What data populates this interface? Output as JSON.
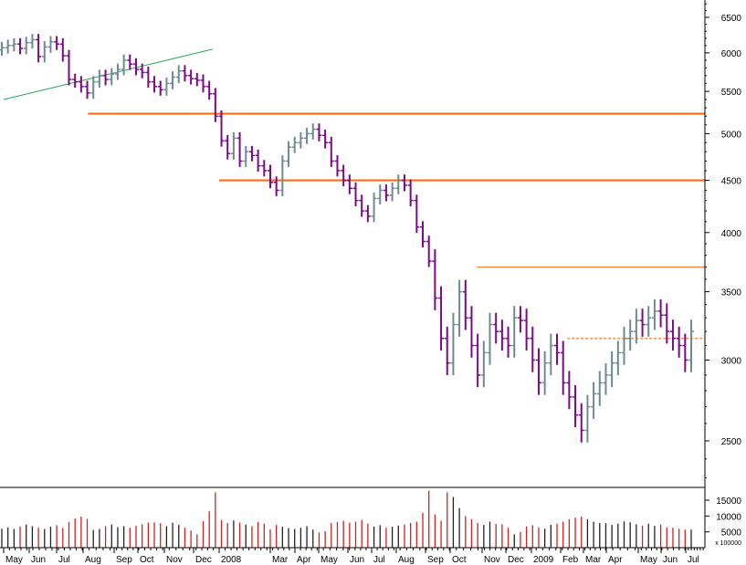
{
  "chart_data": [
    {
      "type": "ohlc-bar",
      "title": "",
      "scale": "log",
      "ylim": [
        2250,
        6800
      ],
      "y_ticks": [
        {
          "value": 2500,
          "label": "2500"
        },
        {
          "value": 3000,
          "label": "3000"
        },
        {
          "value": 3500,
          "label": "3500"
        },
        {
          "value": 4000,
          "label": "4000"
        },
        {
          "value": 4500,
          "label": "4500"
        },
        {
          "value": 5000,
          "label": "5000"
        },
        {
          "value": 5500,
          "label": "5500"
        },
        {
          "value": 6000,
          "label": "6000"
        },
        {
          "value": 6500,
          "label": "6500"
        }
      ],
      "x_range": [
        "2007-05-01",
        "2009-08-15"
      ],
      "x_ticks": [
        {
          "date": "2007-05-01",
          "label": "May"
        },
        {
          "date": "2007-06-01",
          "label": "Jun"
        },
        {
          "date": "2007-07-01",
          "label": "Jul"
        },
        {
          "date": "2007-08-01",
          "label": "Aug"
        },
        {
          "date": "2007-09-01",
          "label": "Sep"
        },
        {
          "date": "2007-10-01",
          "label": "Oct"
        },
        {
          "date": "2007-11-01",
          "label": "Nov"
        },
        {
          "date": "2007-12-01",
          "label": "Dec"
        },
        {
          "date": "2008-01-01",
          "label": "2008"
        },
        {
          "date": "2008-03-01",
          "label": "Mar"
        },
        {
          "date": "2008-04-01",
          "label": "Apr"
        },
        {
          "date": "2008-05-01",
          "label": "May"
        },
        {
          "date": "2008-06-01",
          "label": "Jun"
        },
        {
          "date": "2008-07-01",
          "label": "Jul"
        },
        {
          "date": "2008-08-01",
          "label": "Aug"
        },
        {
          "date": "2008-09-01",
          "label": "Sep"
        },
        {
          "date": "2008-10-01",
          "label": "Oct"
        },
        {
          "date": "2008-11-01",
          "label": "Nov"
        },
        {
          "date": "2008-12-01",
          "label": "Dec"
        },
        {
          "date": "2009-01-01",
          "label": "2009"
        },
        {
          "date": "2009-02-01",
          "label": "Feb"
        },
        {
          "date": "2009-03-01",
          "label": "Mar"
        },
        {
          "date": "2009-04-01",
          "label": "Apr"
        },
        {
          "date": "2009-05-01",
          "label": "May"
        },
        {
          "date": "2009-06-01",
          "label": "Jun"
        },
        {
          "date": "2009-07-01",
          "label": "Jul"
        }
      ],
      "colors": {
        "up": "#6f8a91",
        "down": "#7a0a88",
        "support": "#ff6a13",
        "trendline": "#2aa35a"
      },
      "weekly_close": [
        6070,
        6100,
        6120,
        6060,
        6140,
        6180,
        5950,
        6080,
        6150,
        6120,
        5960,
        5650,
        5620,
        5560,
        5480,
        5620,
        5700,
        5650,
        5720,
        5780,
        5900,
        5850,
        5780,
        5740,
        5620,
        5560,
        5520,
        5600,
        5680,
        5760,
        5700,
        5660,
        5640,
        5560,
        5470,
        5200,
        4920,
        4780,
        4950,
        4700,
        4800,
        4760,
        4650,
        4600,
        4480,
        4400,
        4700,
        4850,
        4900,
        4950,
        5000,
        5050,
        4980,
        4900,
        4700,
        4600,
        4500,
        4420,
        4300,
        4200,
        4150,
        4320,
        4400,
        4350,
        4420,
        4500,
        4450,
        4300,
        4050,
        3920,
        3750,
        3450,
        3150,
        2980,
        3250,
        3500,
        3300,
        3100,
        2900,
        3050,
        3250,
        3200,
        3150,
        3100,
        3300,
        3280,
        3150,
        3000,
        2850,
        2980,
        3100,
        3050,
        2850,
        2760,
        2650,
        2560,
        2700,
        2780,
        2850,
        2900,
        2980,
        3050,
        3150,
        3200,
        3280,
        3250,
        3300,
        3350,
        3320,
        3200,
        3150,
        3100,
        3000,
        3200
      ],
      "weekly_volume": [
        6000,
        6400,
        5900,
        6700,
        7300,
        6800,
        6300,
        5900,
        6600,
        7100,
        6200,
        8100,
        9200,
        9800,
        9100,
        5600,
        5900,
        6800,
        7300,
        6500,
        6800,
        6300,
        6900,
        7400,
        7900,
        8000,
        7700,
        6800,
        7900,
        7200,
        6300,
        5400,
        4200,
        8400,
        11500,
        17500,
        8700,
        7800,
        8600,
        7900,
        7300,
        6800,
        8100,
        7600,
        5800,
        7200,
        6600,
        6200,
        5900,
        6300,
        6800,
        5700,
        4800,
        5200,
        7800,
        8100,
        8500,
        7900,
        8200,
        8800,
        7600,
        6700,
        7100,
        6300,
        6600,
        7000,
        7300,
        7800,
        8200,
        11000,
        18000,
        10500,
        8500,
        17500,
        16000,
        12500,
        10000,
        9000,
        7800,
        7200,
        8200,
        7500,
        7400,
        6300,
        4200,
        4900,
        6700,
        7100,
        6400,
        6000,
        7200,
        7600,
        8200,
        9000,
        9500,
        9800,
        9000,
        8200,
        7800,
        7700,
        7200,
        7600,
        8300,
        8000,
        7400,
        7000,
        7600,
        6900,
        7300,
        6400,
        6300,
        6000,
        5700,
        5700
      ],
      "volume_ticks": [
        {
          "value": 5000,
          "label": "5000"
        },
        {
          "value": 10000,
          "label": "10000"
        },
        {
          "value": 15000,
          "label": "15000"
        }
      ],
      "volume_scale_label": "x 100000",
      "horizontal_levels": [
        {
          "value": 5230,
          "from": "2007-08-06",
          "to": "2009-08-15",
          "style": "solid-thick",
          "color": "#ff6a13"
        },
        {
          "value": 4500,
          "from": "2008-01-01",
          "to": "2009-08-15",
          "style": "solid-thick",
          "color": "#ff6a13"
        },
        {
          "value": 3700,
          "from": "2008-10-27",
          "to": "2009-08-15",
          "style": "solid-thin",
          "color": "#ff6a13"
        },
        {
          "value": 3150,
          "from": "2009-02-09",
          "to": "2009-08-15",
          "style": "dashed",
          "color": "#ff6a13"
        }
      ],
      "trendline": {
        "from": {
          "date": "2007-05-01",
          "value": 5400
        },
        "to": {
          "date": "2007-12-24",
          "value": 6050
        },
        "color": "#2aa35a"
      }
    }
  ]
}
